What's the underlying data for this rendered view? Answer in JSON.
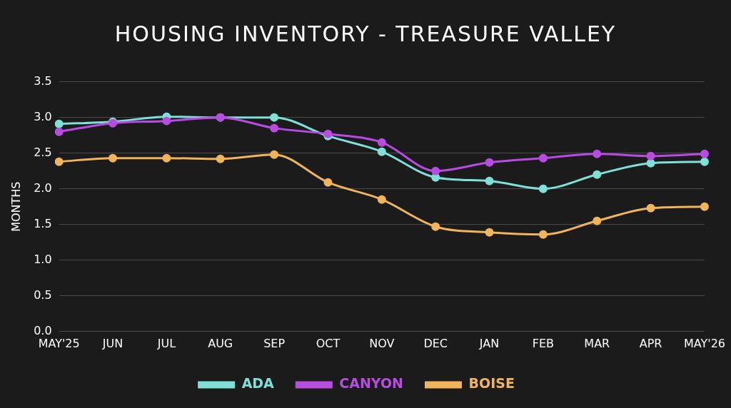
{
  "chart_data": {
    "type": "line",
    "title": "HOUSING INVENTORY - TREASURE VALLEY",
    "ylabel": "MONTHS",
    "categories": [
      "MAY'25",
      "JUN",
      "JUL",
      "AUG",
      "SEP",
      "OCT",
      "NOV",
      "DEC",
      "JAN",
      "FEB",
      "MAR",
      "APR",
      "MAY'26"
    ],
    "series": [
      {
        "name": "ADA",
        "color": "#7ee0d6",
        "values": [
          2.91,
          2.94,
          3.01,
          3.0,
          3.0,
          2.74,
          2.52,
          2.16,
          2.11,
          2.0,
          2.2,
          2.36,
          2.38
        ]
      },
      {
        "name": "CANYON",
        "color": "#b84be0",
        "values": [
          2.8,
          2.92,
          2.95,
          3.0,
          2.85,
          2.77,
          2.65,
          2.25,
          2.37,
          2.43,
          2.49,
          2.46,
          2.49
        ]
      },
      {
        "name": "BOISE",
        "color": "#f0b45a",
        "values": [
          2.38,
          2.43,
          2.43,
          2.42,
          2.48,
          2.09,
          1.85,
          1.47,
          1.39,
          1.36,
          1.55,
          1.73,
          1.75
        ]
      }
    ],
    "ylim": [
      0,
      3.5
    ],
    "yticks": [
      {
        "value": 0,
        "label": "0.0"
      },
      {
        "value": 0.5,
        "label": "0.5"
      },
      {
        "value": 1,
        "label": "1.0"
      },
      {
        "value": 1.5,
        "label": "1.5"
      },
      {
        "value": 2,
        "label": "2.0"
      },
      {
        "value": 2.5,
        "label": "2.5"
      },
      {
        "value": 3,
        "label": "3.0"
      },
      {
        "value": 3.5,
        "label": "3.5"
      }
    ],
    "grid": "y",
    "legend": "bottom",
    "marker": "circle",
    "line_style": "solid"
  }
}
